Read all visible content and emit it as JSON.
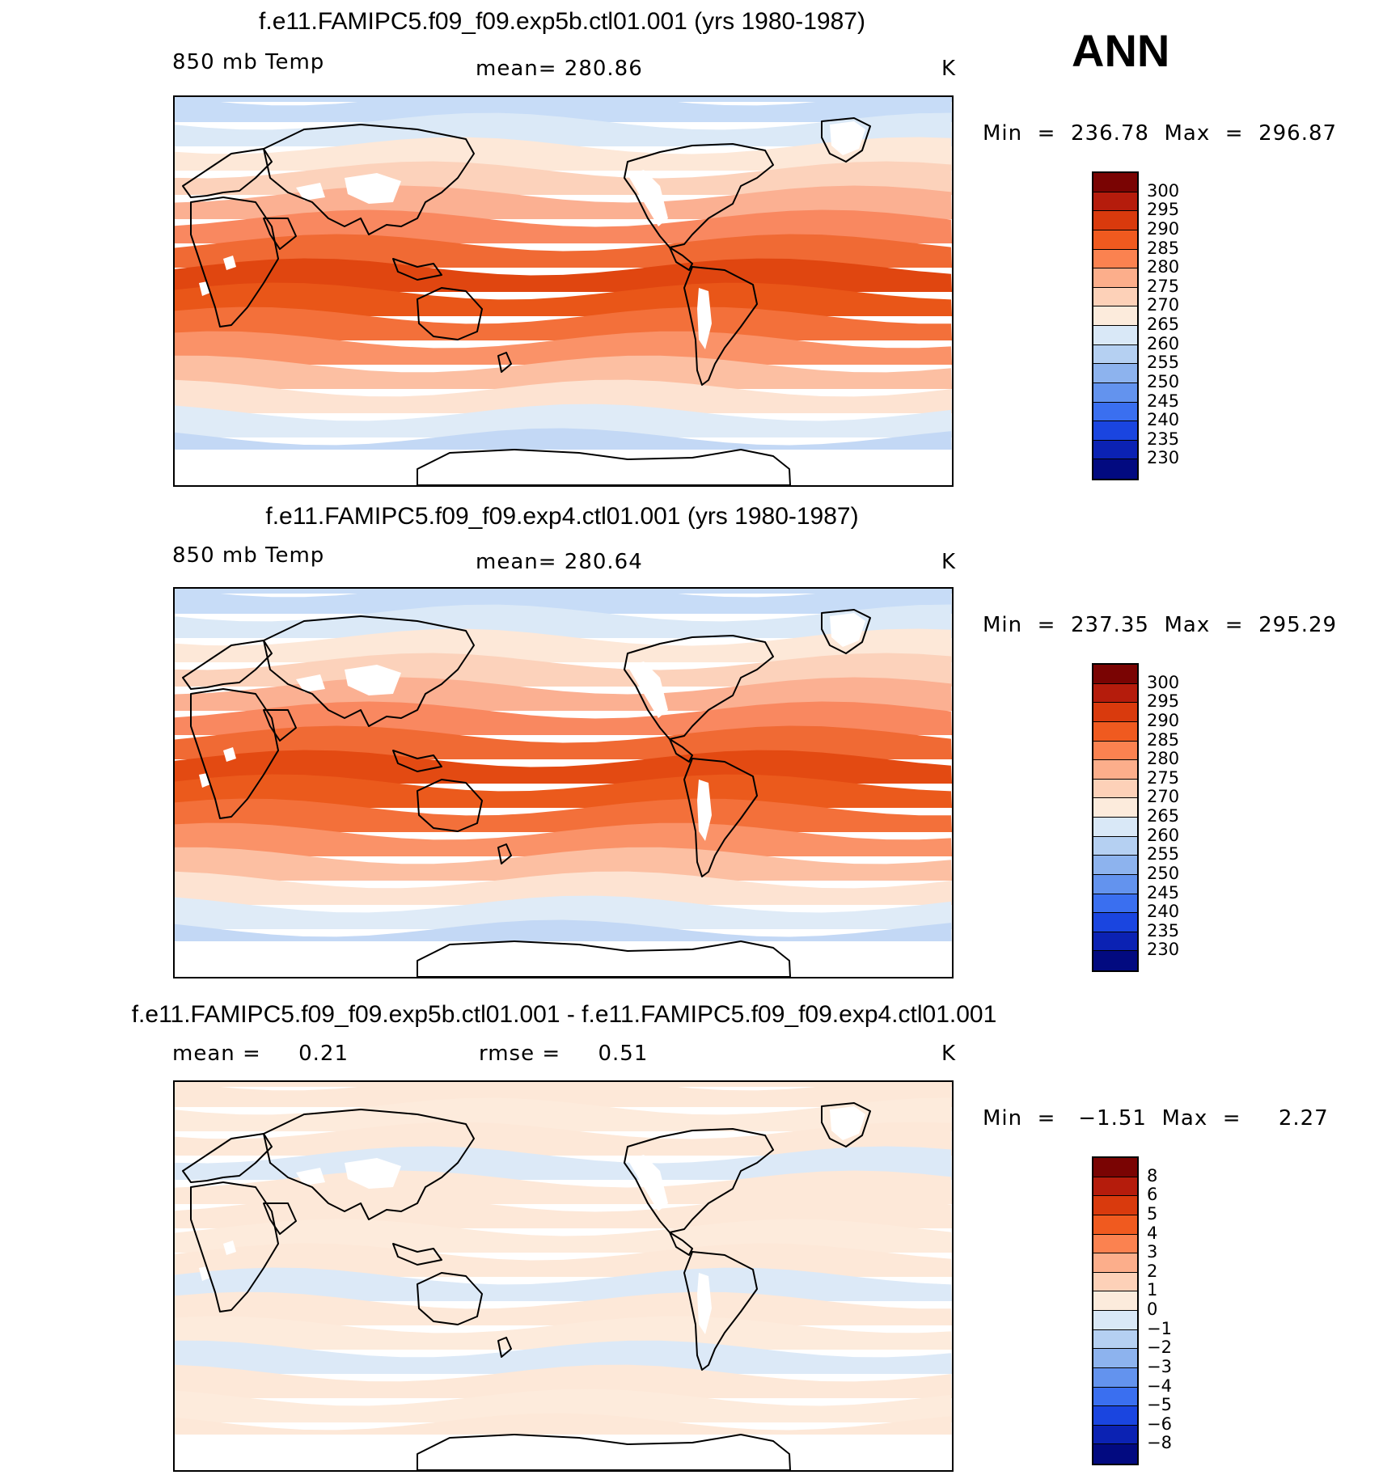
{
  "season": "ANN",
  "panels": [
    {
      "title": "f.e11.FAMIPC5.f09_f09.exp5b.ctl01.001 (yrs 1980-1987)",
      "left_label": "850 mb Temp",
      "center_label": "mean= 280.86",
      "units": "K",
      "minmax": "Min  =  236.78  Max  =  296.87",
      "colorbar_labels": [
        "300",
        "295",
        "290",
        "285",
        "280",
        "275",
        "270",
        "265",
        "260",
        "255",
        "250",
        "245",
        "240",
        "235",
        "230"
      ],
      "colorbar_colors": [
        "#7a0403",
        "#b51c0c",
        "#d93a0d",
        "#f05a1f",
        "#fb8250",
        "#fcae8b",
        "#fdd1b8",
        "#fcebdc",
        "#d9e8f7",
        "#b5d0f2",
        "#8db3ee",
        "#6393ee",
        "#3a6ff0",
        "#1a45e0",
        "#0b22b3",
        "#020a80"
      ],
      "zonal_bands": [
        "#c7dcf7",
        "#dbe9f7",
        "#fde8d8",
        "#fcd2bb",
        "#fbb092",
        "#f98860",
        "#f06a34",
        "#e04610",
        "#e95618",
        "#f3703a",
        "#fa9268",
        "#fcbfa2",
        "#fde3d2",
        "#dfebf7",
        "#c3d8f5",
        "#a3c2f1"
      ]
    },
    {
      "title": "f.e11.FAMIPC5.f09_f09.exp4.ctl01.001 (yrs 1980-1987)",
      "left_label": "850 mb Temp",
      "center_label": "mean= 280.64",
      "units": "K",
      "minmax": "Min  =  237.35  Max  =  295.29",
      "colorbar_labels": [
        "300",
        "295",
        "290",
        "285",
        "280",
        "275",
        "270",
        "265",
        "260",
        "255",
        "250",
        "245",
        "240",
        "235",
        "230"
      ],
      "colorbar_colors": [
        "#7a0403",
        "#b51c0c",
        "#d93a0d",
        "#f05a1f",
        "#fb8250",
        "#fcae8b",
        "#fdd1b8",
        "#fcebdc",
        "#d9e8f7",
        "#b5d0f2",
        "#8db3ee",
        "#6393ee",
        "#3a6ff0",
        "#1a45e0",
        "#0b22b3",
        "#020a80"
      ],
      "zonal_bands": [
        "#c7dcf7",
        "#dbe9f7",
        "#fde8d8",
        "#fcd2bb",
        "#fbb092",
        "#f98860",
        "#f06a34",
        "#e34a12",
        "#eb5a1c",
        "#f3703a",
        "#fa9268",
        "#fcbfa2",
        "#fde3d2",
        "#dfebf7",
        "#c3d8f5",
        "#a3c2f1"
      ]
    },
    {
      "title": "f.e11.FAMIPC5.f09_f09.exp5b.ctl01.001 - f.e11.FAMIPC5.f09_f09.exp4.ctl01.001",
      "left_label": "mean =     0.21",
      "center_label": "rmse =     0.51",
      "units": "K",
      "minmax": "Min  =   −1.51  Max  =     2.27",
      "colorbar_labels": [
        "8",
        "6",
        "5",
        "4",
        "3",
        "2",
        "1",
        "0",
        "−1",
        "−2",
        "−3",
        "−4",
        "−5",
        "−6",
        "−8"
      ],
      "colorbar_colors": [
        "#7a0403",
        "#b51c0c",
        "#d93a0d",
        "#f05a1f",
        "#fb8250",
        "#fcae8b",
        "#fdd1b8",
        "#fcebdc",
        "#d9e8f7",
        "#b5d0f2",
        "#8db3ee",
        "#6393ee",
        "#3a6ff0",
        "#1a45e0",
        "#0b22b3",
        "#020a80"
      ],
      "zonal_bands": [
        "#fde8d8",
        "#fdebdc",
        "#fde8d8",
        "#dce9f7",
        "#fde8d8",
        "#fde8d8",
        "#fdebdc",
        "#fde8d8",
        "#dce9f7",
        "#fde8d8",
        "#fdebdc",
        "#dce9f7",
        "#fde8d8",
        "#fdebdc",
        "#fde8d8",
        "#fde8d8"
      ]
    }
  ]
}
